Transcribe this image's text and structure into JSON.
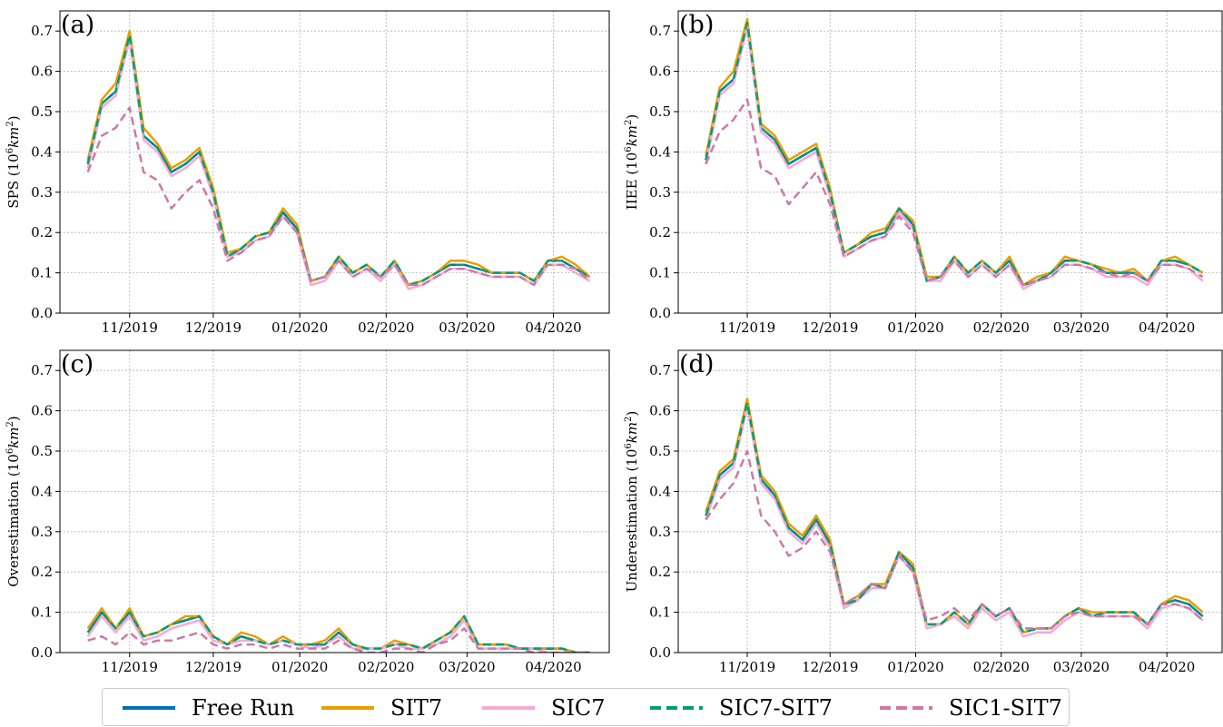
{
  "chart_data": {
    "type": "line",
    "legend_position": "bottom-center",
    "grid": true,
    "series_styles": [
      {
        "name": "Free Run",
        "color": "#0072B2",
        "dash": "solid"
      },
      {
        "name": "SIT7",
        "color": "#E69F00",
        "dash": "solid"
      },
      {
        "name": "SIC7",
        "color": "#F5A9D8",
        "dash": "solid"
      },
      {
        "name": "SIC7-SIT7",
        "color": "#009E73",
        "dash": "dashed"
      },
      {
        "name": "SIC1-SIT7",
        "color": "#CC79A7",
        "dash": "dashed"
      }
    ],
    "x_dates": [
      "2019-10-17",
      "2019-10-22",
      "2019-10-27",
      "2019-11-01",
      "2019-11-06",
      "2019-11-11",
      "2019-11-16",
      "2019-11-21",
      "2019-11-26",
      "2019-12-01",
      "2019-12-06",
      "2019-12-11",
      "2019-12-16",
      "2019-12-21",
      "2019-12-26",
      "2019-12-31",
      "2020-01-05",
      "2020-01-10",
      "2020-01-15",
      "2020-01-20",
      "2020-01-25",
      "2020-01-30",
      "2020-02-04",
      "2020-02-09",
      "2020-02-14",
      "2020-02-19",
      "2020-02-24",
      "2020-02-29",
      "2020-03-05",
      "2020-03-10",
      "2020-03-15",
      "2020-03-20",
      "2020-03-25",
      "2020-03-30",
      "2020-04-04",
      "2020-04-09",
      "2020-04-14"
    ],
    "x_ticks": [
      "11/2019",
      "12/2019",
      "01/2020",
      "02/2020",
      "03/2020",
      "04/2020"
    ],
    "x_tick_dates": [
      "2019-11-01",
      "2019-12-01",
      "2020-01-01",
      "2020-02-01",
      "2020-03-01",
      "2020-04-01"
    ],
    "x_range": [
      "2019-10-07",
      "2020-04-21"
    ],
    "panels": [
      {
        "letter": "(a)",
        "ylabel": "SPS (10^6km^2)",
        "ylim": [
          0,
          0.75
        ],
        "yticks": [
          "0.0",
          "0.1",
          "0.2",
          "0.3",
          "0.4",
          "0.5",
          "0.6",
          "0.7"
        ],
        "series": [
          {
            "name": "Free Run",
            "values": [
              0.37,
              0.52,
              0.55,
              0.69,
              0.44,
              0.41,
              0.35,
              0.37,
              0.4,
              0.3,
              0.14,
              0.16,
              0.19,
              0.2,
              0.25,
              0.21,
              0.08,
              0.09,
              0.14,
              0.1,
              0.12,
              0.09,
              0.13,
              0.07,
              0.08,
              0.1,
              0.12,
              0.12,
              0.11,
              0.1,
              0.1,
              0.1,
              0.08,
              0.13,
              0.13,
              0.11,
              0.09
            ]
          },
          {
            "name": "SIT7",
            "values": [
              0.38,
              0.53,
              0.57,
              0.7,
              0.46,
              0.42,
              0.36,
              0.38,
              0.41,
              0.31,
              0.15,
              0.16,
              0.19,
              0.2,
              0.26,
              0.22,
              0.08,
              0.09,
              0.14,
              0.1,
              0.12,
              0.09,
              0.13,
              0.07,
              0.08,
              0.1,
              0.13,
              0.13,
              0.12,
              0.1,
              0.1,
              0.1,
              0.08,
              0.13,
              0.14,
              0.12,
              0.09
            ]
          },
          {
            "name": "SIC7",
            "values": [
              0.36,
              0.51,
              0.54,
              0.68,
              0.43,
              0.4,
              0.34,
              0.36,
              0.39,
              0.29,
              0.14,
              0.15,
              0.18,
              0.19,
              0.24,
              0.2,
              0.07,
              0.08,
              0.13,
              0.09,
              0.11,
              0.08,
              0.12,
              0.06,
              0.07,
              0.09,
              0.11,
              0.11,
              0.1,
              0.09,
              0.09,
              0.09,
              0.07,
              0.12,
              0.12,
              0.1,
              0.08
            ]
          },
          {
            "name": "SIC7-SIT7",
            "values": [
              0.37,
              0.52,
              0.55,
              0.69,
              0.44,
              0.41,
              0.35,
              0.37,
              0.4,
              0.3,
              0.14,
              0.16,
              0.19,
              0.2,
              0.25,
              0.21,
              0.08,
              0.09,
              0.14,
              0.1,
              0.12,
              0.09,
              0.13,
              0.07,
              0.08,
              0.1,
              0.12,
              0.12,
              0.11,
              0.1,
              0.1,
              0.1,
              0.08,
              0.13,
              0.13,
              0.11,
              0.09
            ]
          },
          {
            "name": "SIC1-SIT7",
            "values": [
              0.35,
              0.44,
              0.46,
              0.51,
              0.35,
              0.33,
              0.26,
              0.3,
              0.33,
              0.26,
              0.13,
              0.15,
              0.18,
              0.19,
              0.24,
              0.2,
              0.08,
              0.09,
              0.13,
              0.09,
              0.11,
              0.09,
              0.12,
              0.07,
              0.07,
              0.09,
              0.11,
              0.11,
              0.1,
              0.09,
              0.09,
              0.09,
              0.07,
              0.12,
              0.12,
              0.11,
              0.08
            ]
          }
        ]
      },
      {
        "letter": "(b)",
        "ylabel": "IIEE (10^6km^2)",
        "ylim": [
          0,
          0.75
        ],
        "yticks": [
          "0.0",
          "0.1",
          "0.2",
          "0.3",
          "0.4",
          "0.5",
          "0.6",
          "0.7"
        ],
        "series": [
          {
            "name": "Free Run",
            "values": [
              0.38,
              0.55,
              0.58,
              0.72,
              0.46,
              0.43,
              0.37,
              0.39,
              0.41,
              0.3,
              0.15,
              0.17,
              0.19,
              0.2,
              0.26,
              0.22,
              0.08,
              0.09,
              0.14,
              0.1,
              0.13,
              0.1,
              0.13,
              0.07,
              0.08,
              0.1,
              0.13,
              0.13,
              0.12,
              0.1,
              0.1,
              0.1,
              0.08,
              0.13,
              0.13,
              0.12,
              0.1
            ]
          },
          {
            "name": "SIT7",
            "values": [
              0.39,
              0.56,
              0.6,
              0.73,
              0.47,
              0.44,
              0.38,
              0.4,
              0.42,
              0.31,
              0.15,
              0.17,
              0.2,
              0.21,
              0.26,
              0.23,
              0.09,
              0.09,
              0.14,
              0.1,
              0.13,
              0.1,
              0.14,
              0.07,
              0.09,
              0.1,
              0.14,
              0.13,
              0.12,
              0.11,
              0.1,
              0.11,
              0.08,
              0.13,
              0.14,
              0.12,
              0.1
            ]
          },
          {
            "name": "SIC7",
            "values": [
              0.37,
              0.54,
              0.57,
              0.71,
              0.45,
              0.42,
              0.36,
              0.38,
              0.4,
              0.29,
              0.14,
              0.16,
              0.18,
              0.19,
              0.25,
              0.21,
              0.08,
              0.08,
              0.13,
              0.09,
              0.12,
              0.09,
              0.12,
              0.06,
              0.08,
              0.09,
              0.12,
              0.12,
              0.11,
              0.09,
              0.09,
              0.09,
              0.07,
              0.12,
              0.12,
              0.11,
              0.08
            ]
          },
          {
            "name": "SIC7-SIT7",
            "values": [
              0.38,
              0.55,
              0.58,
              0.72,
              0.46,
              0.43,
              0.37,
              0.39,
              0.41,
              0.3,
              0.15,
              0.17,
              0.19,
              0.2,
              0.26,
              0.22,
              0.08,
              0.09,
              0.14,
              0.1,
              0.13,
              0.1,
              0.13,
              0.07,
              0.08,
              0.1,
              0.13,
              0.13,
              0.12,
              0.1,
              0.1,
              0.1,
              0.08,
              0.13,
              0.13,
              0.12,
              0.1
            ]
          },
          {
            "name": "SIC1-SIT7",
            "values": [
              0.37,
              0.45,
              0.48,
              0.53,
              0.36,
              0.34,
              0.27,
              0.31,
              0.35,
              0.27,
              0.14,
              0.16,
              0.18,
              0.19,
              0.24,
              0.2,
              0.08,
              0.09,
              0.13,
              0.09,
              0.12,
              0.09,
              0.12,
              0.07,
              0.08,
              0.09,
              0.12,
              0.12,
              0.11,
              0.1,
              0.09,
              0.1,
              0.08,
              0.12,
              0.12,
              0.11,
              0.09
            ]
          }
        ]
      },
      {
        "letter": "(c)",
        "ylabel": "Overestimation (10^6km^2)",
        "ylim": [
          0,
          0.75
        ],
        "yticks": [
          "0.0",
          "0.1",
          "0.2",
          "0.3",
          "0.4",
          "0.5",
          "0.6",
          "0.7"
        ],
        "series": [
          {
            "name": "Free Run",
            "values": [
              0.05,
              0.1,
              0.06,
              0.1,
              0.04,
              0.05,
              0.07,
              0.08,
              0.09,
              0.04,
              0.02,
              0.04,
              0.03,
              0.02,
              0.03,
              0.02,
              0.02,
              0.02,
              0.05,
              0.02,
              0.01,
              0.01,
              0.02,
              0.02,
              0.01,
              0.03,
              0.05,
              0.09,
              0.02,
              0.02,
              0.02,
              0.01,
              0.01,
              0.01,
              0.01,
              0.0,
              0.0
            ]
          },
          {
            "name": "SIT7",
            "values": [
              0.06,
              0.11,
              0.06,
              0.11,
              0.04,
              0.05,
              0.07,
              0.09,
              0.09,
              0.04,
              0.02,
              0.05,
              0.04,
              0.02,
              0.04,
              0.02,
              0.02,
              0.03,
              0.06,
              0.02,
              0.01,
              0.01,
              0.03,
              0.02,
              0.01,
              0.03,
              0.05,
              0.09,
              0.02,
              0.02,
              0.02,
              0.01,
              0.01,
              0.01,
              0.01,
              0.0,
              0.0
            ]
          },
          {
            "name": "SIC7",
            "values": [
              0.04,
              0.09,
              0.05,
              0.09,
              0.03,
              0.04,
              0.06,
              0.07,
              0.08,
              0.03,
              0.02,
              0.03,
              0.03,
              0.02,
              0.03,
              0.02,
              0.01,
              0.02,
              0.04,
              0.01,
              0.01,
              0.01,
              0.02,
              0.01,
              0.01,
              0.02,
              0.04,
              0.08,
              0.01,
              0.01,
              0.01,
              0.01,
              0.01,
              0.0,
              0.0,
              0.0,
              0.0
            ]
          },
          {
            "name": "SIC7-SIT7",
            "values": [
              0.05,
              0.1,
              0.06,
              0.1,
              0.04,
              0.05,
              0.07,
              0.08,
              0.09,
              0.04,
              0.02,
              0.04,
              0.03,
              0.02,
              0.03,
              0.02,
              0.02,
              0.02,
              0.05,
              0.02,
              0.01,
              0.01,
              0.02,
              0.02,
              0.01,
              0.03,
              0.05,
              0.09,
              0.02,
              0.02,
              0.02,
              0.01,
              0.01,
              0.01,
              0.01,
              0.0,
              0.0
            ]
          },
          {
            "name": "SIC1-SIT7",
            "values": [
              0.03,
              0.04,
              0.02,
              0.05,
              0.02,
              0.03,
              0.03,
              0.04,
              0.05,
              0.02,
              0.01,
              0.02,
              0.02,
              0.01,
              0.02,
              0.01,
              0.01,
              0.01,
              0.03,
              0.01,
              0.0,
              0.0,
              0.01,
              0.01,
              0.0,
              0.02,
              0.03,
              0.06,
              0.01,
              0.01,
              0.01,
              0.01,
              0.0,
              0.0,
              0.0,
              0.0,
              0.0
            ]
          }
        ]
      },
      {
        "letter": "(d)",
        "ylabel": "Underestimation (10^6km^2)",
        "ylim": [
          0,
          0.75
        ],
        "yticks": [
          "0.0",
          "0.1",
          "0.2",
          "0.3",
          "0.4",
          "0.5",
          "0.6",
          "0.7"
        ],
        "series": [
          {
            "name": "Free Run",
            "values": [
              0.34,
              0.44,
              0.47,
              0.62,
              0.43,
              0.39,
              0.31,
              0.28,
              0.33,
              0.27,
              0.12,
              0.13,
              0.17,
              0.16,
              0.25,
              0.21,
              0.07,
              0.07,
              0.1,
              0.07,
              0.12,
              0.09,
              0.11,
              0.05,
              0.06,
              0.06,
              0.09,
              0.11,
              0.09,
              0.1,
              0.1,
              0.1,
              0.07,
              0.12,
              0.13,
              0.12,
              0.09
            ]
          },
          {
            "name": "SIT7",
            "values": [
              0.35,
              0.45,
              0.48,
              0.63,
              0.44,
              0.4,
              0.32,
              0.29,
              0.34,
              0.28,
              0.12,
              0.14,
              0.17,
              0.17,
              0.25,
              0.22,
              0.07,
              0.07,
              0.1,
              0.07,
              0.12,
              0.09,
              0.11,
              0.05,
              0.06,
              0.06,
              0.09,
              0.11,
              0.1,
              0.1,
              0.1,
              0.1,
              0.07,
              0.12,
              0.14,
              0.13,
              0.1
            ]
          },
          {
            "name": "SIC7",
            "values": [
              0.33,
              0.43,
              0.46,
              0.61,
              0.42,
              0.38,
              0.3,
              0.27,
              0.32,
              0.26,
              0.11,
              0.13,
              0.16,
              0.16,
              0.24,
              0.2,
              0.06,
              0.07,
              0.09,
              0.06,
              0.11,
              0.08,
              0.1,
              0.04,
              0.05,
              0.05,
              0.08,
              0.1,
              0.09,
              0.09,
              0.09,
              0.09,
              0.06,
              0.11,
              0.12,
              0.11,
              0.08
            ]
          },
          {
            "name": "SIC7-SIT7",
            "values": [
              0.34,
              0.44,
              0.47,
              0.62,
              0.43,
              0.39,
              0.31,
              0.28,
              0.33,
              0.27,
              0.12,
              0.13,
              0.17,
              0.16,
              0.25,
              0.21,
              0.07,
              0.07,
              0.1,
              0.07,
              0.12,
              0.09,
              0.11,
              0.05,
              0.06,
              0.06,
              0.09,
              0.11,
              0.09,
              0.1,
              0.1,
              0.1,
              0.07,
              0.12,
              0.13,
              0.12,
              0.09
            ]
          },
          {
            "name": "SIC1-SIT7",
            "values": [
              0.33,
              0.38,
              0.42,
              0.5,
              0.34,
              0.3,
              0.24,
              0.26,
              0.3,
              0.25,
              0.12,
              0.14,
              0.17,
              0.16,
              0.24,
              0.2,
              0.08,
              0.09,
              0.11,
              0.08,
              0.12,
              0.09,
              0.11,
              0.06,
              0.06,
              0.06,
              0.09,
              0.1,
              0.09,
              0.09,
              0.09,
              0.09,
              0.07,
              0.12,
              0.12,
              0.11,
              0.08
            ]
          }
        ]
      }
    ]
  }
}
